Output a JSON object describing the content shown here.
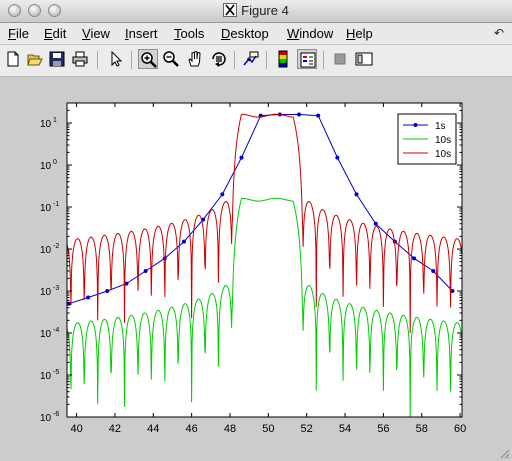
{
  "window": {
    "title": "Figure 4"
  },
  "menu": [
    "File",
    "Edit",
    "View",
    "Insert",
    "Tools",
    "Desktop",
    "Window",
    "Help"
  ],
  "menu_mnemonic_index": [
    0,
    0,
    0,
    0,
    0,
    0,
    0,
    0
  ],
  "toolbar": {
    "buttons": [
      "new-figure-icon",
      "open-file-icon",
      "save-icon",
      "print-icon",
      "edit-plot-arrow-icon",
      "zoom-in-icon",
      "zoom-out-icon",
      "pan-hand-icon",
      "rotate-3d-icon",
      "data-cursor-icon",
      "colorbar-icon",
      "legend-icon",
      "hide-plot-tools-icon",
      "show-plot-tools-icon"
    ],
    "pressed": [
      "zoom-in-icon",
      "legend-icon"
    ]
  },
  "colors": {
    "series_1s": "#0000cc",
    "series_10s_green": "#00cc00",
    "series_10s_red": "#cc0000",
    "background": "#cccccc"
  },
  "chart_data": {
    "type": "line",
    "title": "",
    "xlabel": "",
    "ylabel": "",
    "xlim": [
      39.5,
      60.1
    ],
    "ylim": [
      1e-06,
      30
    ],
    "yscale": "log",
    "grid": false,
    "x_ticks": [
      40,
      42,
      44,
      46,
      48,
      50,
      52,
      54,
      56,
      58,
      60
    ],
    "y_ticks": [
      {
        "label": "10",
        "exp": "1",
        "value": 10
      },
      {
        "label": "10",
        "exp": "0",
        "value": 1
      },
      {
        "label": "10",
        "exp": "-1",
        "value": 0.1
      },
      {
        "label": "10",
        "exp": "-2",
        "value": 0.01
      },
      {
        "label": "10",
        "exp": "-3",
        "value": 0.001
      },
      {
        "label": "10",
        "exp": "-4",
        "value": 0.0001
      },
      {
        "label": "10",
        "exp": "-5",
        "value": 1e-05
      },
      {
        "label": "10",
        "exp": "-6",
        "value": 1e-06
      }
    ],
    "legend": {
      "location": "top-right",
      "entries": [
        "1s",
        "10s",
        "10s"
      ]
    },
    "series": [
      {
        "name": "1s",
        "color": "#0000cc",
        "marker": "dot",
        "x": [
          39.6,
          40.6,
          41.6,
          42.6,
          43.6,
          44.6,
          45.6,
          46.6,
          47.6,
          48.6,
          49.6,
          50.6,
          51.6,
          52.6,
          53.6,
          54.6,
          55.6,
          56.6,
          57.6,
          58.6,
          59.6
        ],
        "y": [
          0.0005,
          0.0007,
          0.001,
          0.0015,
          0.003,
          0.006,
          0.015,
          0.05,
          0.2,
          1.5,
          15,
          16,
          16,
          15,
          1.5,
          0.2,
          0.04,
          0.015,
          0.006,
          0.003,
          0.001
        ]
      },
      {
        "name": "10s",
        "color": "#00cc00",
        "envelope": {
          "passband": [
            48.1,
            51.8
          ],
          "plateau": 0.15,
          "sidelobe_period": 0.7
        }
      },
      {
        "name": "10s",
        "color": "#cc0000",
        "envelope": {
          "passband": [
            48.1,
            51.8
          ],
          "plateau": 15,
          "sidelobe_period": 0.7
        }
      }
    ]
  }
}
